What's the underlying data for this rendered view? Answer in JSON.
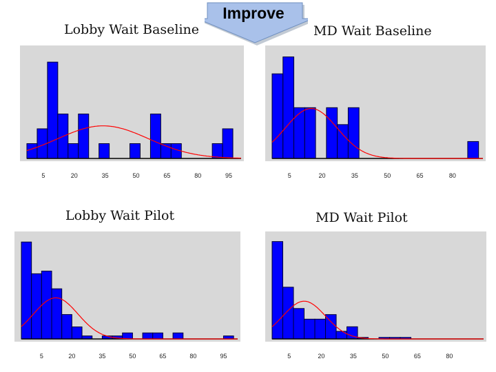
{
  "banner": {
    "label": "Improve"
  },
  "colors": {
    "plot_bg": "#d8d8d8",
    "bar_fill": "#0000ff",
    "bar_stroke": "#000033",
    "curve": "#ff0000",
    "arrow_fill": "#a9c1ea",
    "arrow_stroke": "#6f8fbf"
  },
  "chart_data": [
    {
      "type": "bar",
      "title": "Lobby Wait Baseline",
      "xlim": [
        -3,
        101
      ],
      "bin_width": 5,
      "x_ticks": [
        "5",
        "20",
        "35",
        "50",
        "65",
        "80",
        "95"
      ],
      "tick_values": [
        5,
        20,
        35,
        50,
        65,
        80,
        95
      ],
      "bin_starts": [
        -3,
        2,
        7,
        12,
        17,
        22,
        27,
        32,
        37,
        42,
        47,
        52,
        57,
        62,
        67,
        72,
        77,
        82,
        87,
        92,
        97
      ],
      "values": [
        2,
        4,
        13,
        6,
        2,
        6,
        0,
        2,
        0,
        0,
        2,
        0,
        6,
        2,
        2,
        0,
        0,
        0,
        2,
        4,
        0
      ],
      "ylim": [
        0,
        14.5
      ],
      "curve": {
        "type": "normal",
        "peak": 4.4,
        "mean": 34,
        "sd": 22
      }
    },
    {
      "type": "bar",
      "title": "MD Wait Baseline",
      "xlim": [
        -3,
        94
      ],
      "bin_width": 5,
      "x_ticks": [
        "5",
        "20",
        "35",
        "50",
        "65",
        "80"
      ],
      "tick_values": [
        5,
        20,
        35,
        50,
        65,
        80
      ],
      "bin_starts": [
        -3,
        2,
        7,
        12,
        17,
        22,
        27,
        32,
        37,
        42,
        47,
        52,
        57,
        62,
        67,
        72,
        77,
        82,
        87
      ],
      "values": [
        10,
        12,
        6,
        6,
        0,
        6,
        4,
        6,
        0,
        0,
        0,
        0,
        0,
        0,
        0,
        0,
        0,
        0,
        2
      ],
      "ylim": [
        0,
        12.7
      ],
      "curve": {
        "type": "normal",
        "peak": 5.9,
        "mean": 15,
        "sd": 12
      }
    },
    {
      "type": "bar",
      "title": "Lobby Wait Pilot",
      "xlim": [
        -5,
        102
      ],
      "bin_width": 5,
      "x_ticks": [
        "5",
        "20",
        "35",
        "50",
        "65",
        "80",
        "95"
      ],
      "tick_values": [
        5,
        20,
        35,
        50,
        65,
        80,
        95
      ],
      "bin_starts": [
        -5,
        0,
        5,
        10,
        15,
        20,
        25,
        30,
        35,
        40,
        45,
        50,
        55,
        60,
        65,
        70,
        75,
        80,
        85,
        90,
        95
      ],
      "values": [
        29,
        19.5,
        20.3,
        15,
        7.3,
        3.6,
        0.9,
        0,
        0.9,
        0.9,
        1.8,
        0,
        1.8,
        1.8,
        0,
        1.8,
        0,
        0,
        0,
        0,
        0.9
      ],
      "ylim": [
        0,
        30.5
      ],
      "curve": {
        "type": "normal",
        "peak": 12.3,
        "mean": 12,
        "sd": 11
      }
    },
    {
      "type": "bar",
      "title": "MD Wait Pilot",
      "xlim": [
        -3,
        96
      ],
      "bin_width": 5,
      "x_ticks": [
        "5",
        "20",
        "35",
        "50",
        "65",
        "80"
      ],
      "tick_values": [
        5,
        20,
        35,
        50,
        65,
        80
      ],
      "bin_starts": [
        -3,
        2,
        7,
        12,
        17,
        22,
        27,
        32,
        37,
        42,
        47,
        52,
        57,
        62
      ],
      "values": [
        32,
        17,
        10,
        6.5,
        6.5,
        8,
        2.5,
        4,
        0.5,
        0,
        0.5,
        0.5,
        0.5,
        0
      ],
      "ylim": [
        0,
        33.5
      ],
      "curve": {
        "type": "normal",
        "peak": 12.4,
        "mean": 12,
        "sd": 10
      }
    }
  ]
}
